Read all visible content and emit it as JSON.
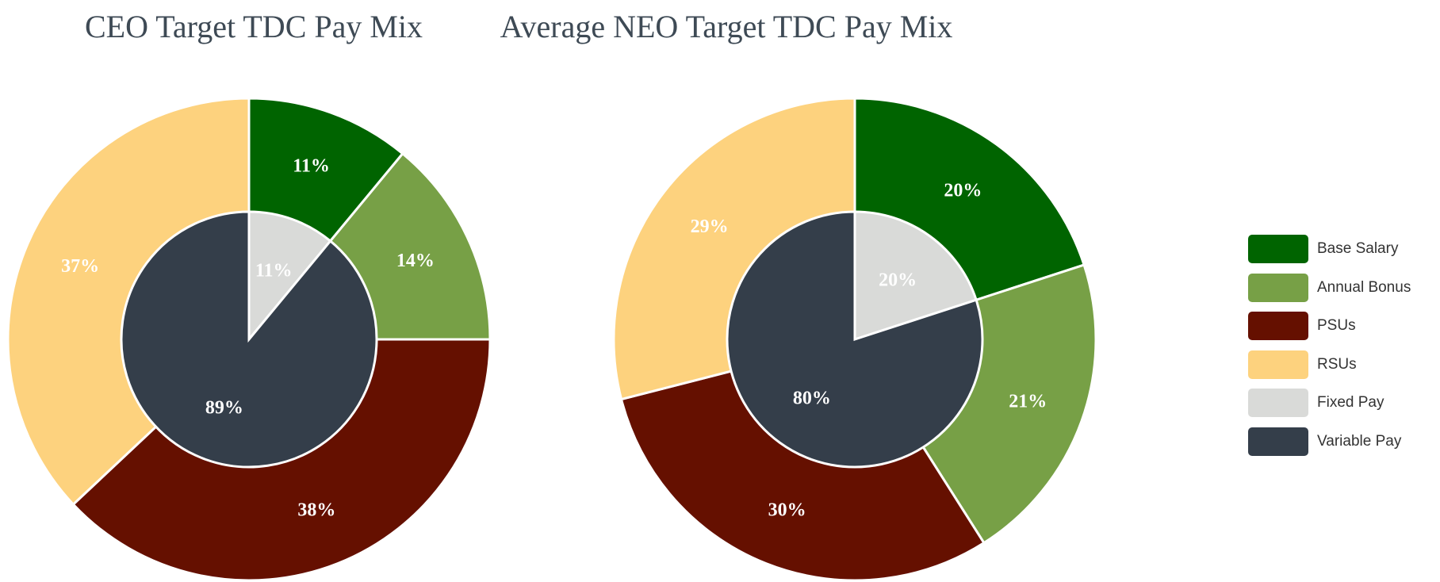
{
  "chart_data": [
    {
      "type": "donut",
      "title": "CEO Target TDC Pay Mix",
      "outer_ring": [
        {
          "name": "Base Salary",
          "value": 11,
          "label": "11%"
        },
        {
          "name": "Annual Bonus",
          "value": 14,
          "label": "14%"
        },
        {
          "name": "PSUs",
          "value": 38,
          "label": "38%"
        },
        {
          "name": "RSUs",
          "value": 37,
          "label": "37%"
        }
      ],
      "inner_pie": [
        {
          "name": "Fixed Pay",
          "value": 11,
          "label": "11%"
        },
        {
          "name": "Variable Pay",
          "value": 89,
          "label": "89%"
        }
      ]
    },
    {
      "type": "donut",
      "title": "Average NEO Target TDC Pay Mix",
      "outer_ring": [
        {
          "name": "Base Salary",
          "value": 20,
          "label": "20%"
        },
        {
          "name": "Annual Bonus",
          "value": 21,
          "label": "21%"
        },
        {
          "name": "PSUs",
          "value": 30,
          "label": "30%"
        },
        {
          "name": "RSUs",
          "value": 29,
          "label": "29%"
        }
      ],
      "inner_pie": [
        {
          "name": "Fixed Pay",
          "value": 20,
          "label": "20%"
        },
        {
          "name": "Variable Pay",
          "value": 80,
          "label": "80%"
        }
      ]
    }
  ],
  "legend": [
    {
      "label": "Base Salary",
      "color": "#006400"
    },
    {
      "label": "Annual Bonus",
      "color": "#77a046"
    },
    {
      "label": "PSUs",
      "color": "#651000"
    },
    {
      "label": "RSUs",
      "color": "#fdd27e"
    },
    {
      "label": "Fixed Pay",
      "color": "#d9dad8"
    },
    {
      "label": "Variable Pay",
      "color": "#343e4a"
    }
  ]
}
